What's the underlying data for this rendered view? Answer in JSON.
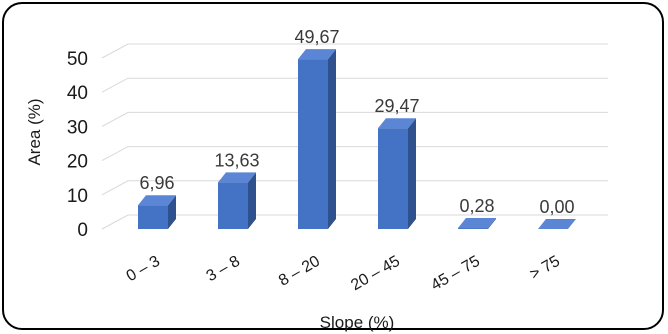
{
  "chart_data": {
    "type": "bar",
    "categories": [
      "0 – 3",
      "3 – 8",
      "8 – 20",
      "20 – 45",
      "45 – 75",
      "> 75"
    ],
    "values": [
      6.96,
      13.63,
      49.67,
      29.47,
      0.28,
      0.0
    ],
    "data_labels": [
      "6,96",
      "13,63",
      "49,67",
      "29,47",
      "0,28",
      "0,00"
    ],
    "xlabel": "Slope (%)",
    "ylabel": "Area (%)",
    "ylim": [
      0,
      50
    ],
    "yticks": [
      0,
      10,
      20,
      30,
      40,
      50
    ],
    "grid": true,
    "legend": "none",
    "colors": {
      "bar_front": "#4472C4",
      "bar_side": "#2F528F",
      "bar_top": "#5B86D6",
      "grid": "#d9d9d9"
    }
  }
}
